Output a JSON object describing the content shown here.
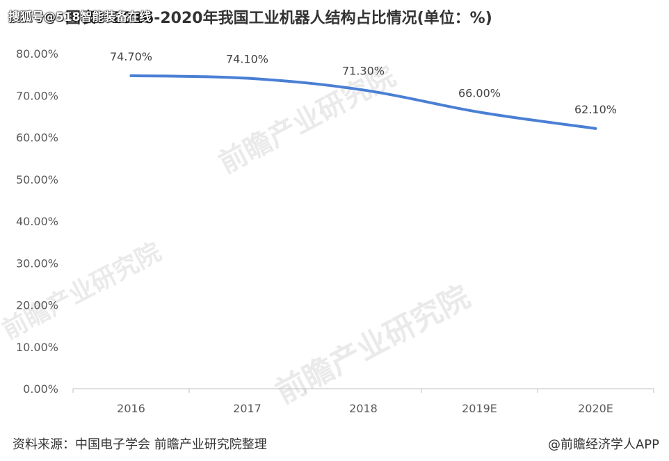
{
  "header": {
    "overlay_source": "搜狐号@518智能装备在线",
    "title": "图表：2016-2020年我国工业机器人结构占比情况(单位：%)"
  },
  "chart_data": {
    "type": "line",
    "categories": [
      "2016",
      "2017",
      "2018",
      "2019E",
      "2020E"
    ],
    "series": [
      {
        "values": [
          74.7,
          74.1,
          71.3,
          66.0,
          62.1
        ],
        "data_labels": [
          "74.70%",
          "74.10%",
          "71.30%",
          "66.00%",
          "62.10%"
        ]
      }
    ],
    "ylim": [
      0,
      80
    ],
    "y_ticks": [
      0,
      10,
      20,
      30,
      40,
      50,
      60,
      70,
      80
    ],
    "y_tick_labels": [
      "0.00%",
      "10.00%",
      "20.00%",
      "30.00%",
      "40.00%",
      "50.00%",
      "60.00%",
      "70.00%",
      "80.00%"
    ],
    "xlabel": "",
    "ylabel": "",
    "grid": false,
    "line_color": "#4a7fd4"
  },
  "footer": {
    "source": "资料来源：中国电子学会 前瞻产业研究院整理",
    "brand": "@前瞻经济学人APP"
  },
  "watermark": {
    "text": "前瞻产业研究院"
  }
}
